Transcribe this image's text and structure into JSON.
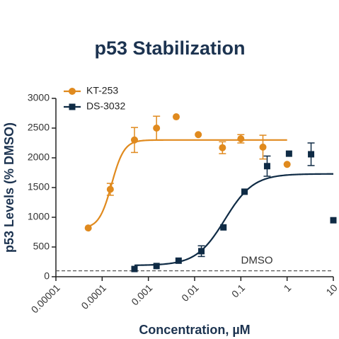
{
  "chart_data": {
    "type": "scatter",
    "title": "p53 Stabilization",
    "xlabel": "Concentration, µM",
    "ylabel": "p53 Levels (% DMSO)",
    "xscale": "log",
    "xlim": [
      1e-05,
      10
    ],
    "xticks": [
      1e-05,
      0.0001,
      0.001,
      0.01,
      0.1,
      1,
      10
    ],
    "ylim": [
      0,
      3000
    ],
    "yticks": [
      0,
      500,
      1000,
      1500,
      2000,
      2500,
      3000
    ],
    "legend": "upper left",
    "reference_line": {
      "value": 100,
      "label": "DMSO"
    },
    "series": [
      {
        "name": "KT-253",
        "color": "#e08a1e",
        "marker": "circle",
        "x": [
          5e-05,
          0.00015,
          0.0005,
          0.0015,
          0.004,
          0.012,
          0.04,
          0.1,
          0.3,
          1
        ],
        "values": [
          820,
          1470,
          2300,
          2500,
          2690,
          2390,
          2170,
          2320,
          2180,
          1890
        ],
        "errors": [
          null,
          100,
          210,
          200,
          null,
          null,
          100,
          70,
          200,
          null
        ],
        "fit": {
          "bottom": 810,
          "top": 2300,
          "ec50": 0.00016,
          "hill": 3.2,
          "xrange": [
            5e-05,
            1
          ]
        }
      },
      {
        "name": "DS-3032",
        "color": "#0f2b45",
        "marker": "square",
        "x": [
          0.0005,
          0.0015,
          0.0045,
          0.014,
          0.042,
          0.12,
          0.37,
          1.1,
          3.3,
          10
        ],
        "values": [
          130,
          180,
          270,
          430,
          830,
          1430,
          1860,
          2070,
          2060,
          950
        ],
        "errors": [
          null,
          null,
          null,
          90,
          null,
          null,
          170,
          null,
          190,
          null
        ],
        "fit": {
          "bottom": 190,
          "top": 1730,
          "ec50": 0.045,
          "hill": 1.4,
          "xrange": [
            0.0005,
            10
          ]
        }
      }
    ]
  }
}
